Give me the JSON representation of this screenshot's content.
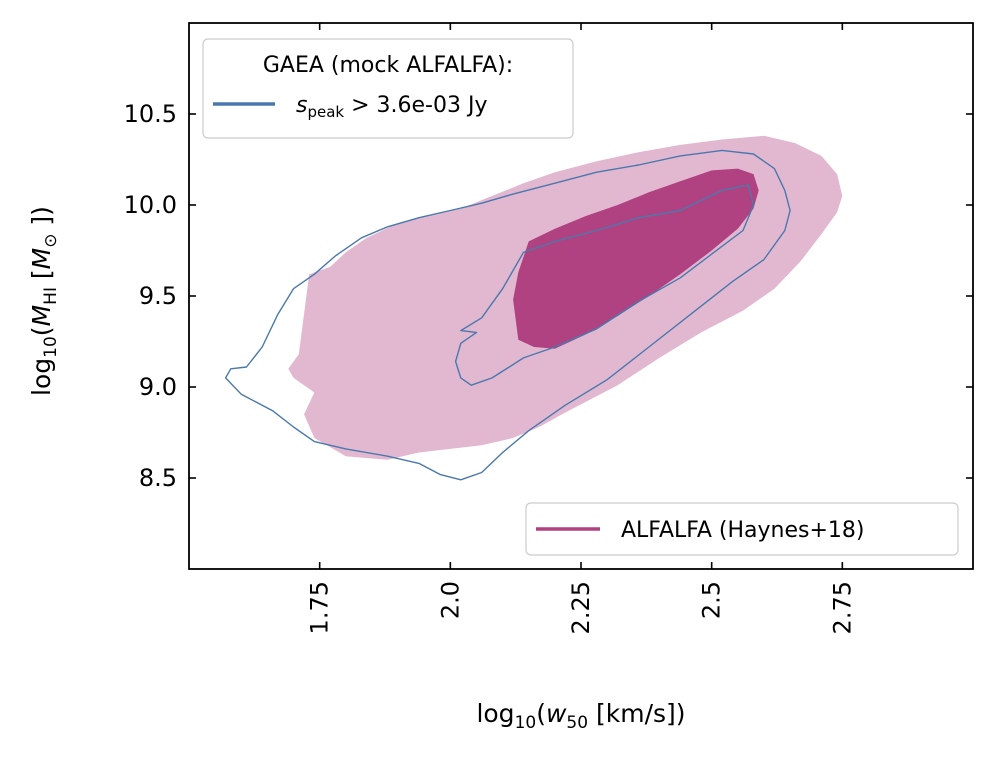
{
  "chart_data": {
    "type": "contour",
    "title": "",
    "xlabel": "log10(w50 [km/s])",
    "ylabel": "log10(MHI [M⊙])",
    "xlim": [
      1.5,
      3.0
    ],
    "ylim": [
      8.0,
      11.0
    ],
    "x_ticks": [
      1.75,
      2.0,
      2.25,
      2.5,
      2.75
    ],
    "x_tick_labels": [
      "1.75",
      "2.0",
      "2.25",
      "2.5",
      "2.75"
    ],
    "y_ticks": [
      8.5,
      9.0,
      9.5,
      10.0,
      10.5
    ],
    "y_tick_labels": [
      "8.5",
      "9.0",
      "9.5",
      "10.0",
      "10.5"
    ],
    "grid": false,
    "legends": [
      {
        "placement": "top-left",
        "title": "GAEA (mock ALFALFA):",
        "entries": [
          {
            "label_symbol": "s",
            "label_subscript": "peak",
            "label_rest": " >  3.6e-03 Jy",
            "color": "#4a78ad"
          }
        ]
      },
      {
        "placement": "bottom-right",
        "title": "",
        "entries": [
          {
            "label": "ALFALFA (Haynes+18)",
            "color": "#b04282"
          }
        ]
      }
    ],
    "series": [
      {
        "name": "ALFALFA (Haynes+18)",
        "kind": "filled-contour",
        "color_outer": "#e2b8d1",
        "color_inner": "#b04282",
        "levels": [
          {
            "level": "outer",
            "x": [
              1.73,
              1.77,
              1.8,
              1.84,
              1.9,
              1.96,
              2.02,
              2.08,
              2.14,
              2.2,
              2.28,
              2.36,
              2.44,
              2.52,
              2.6,
              2.66,
              2.71,
              2.74,
              2.75,
              2.74,
              2.71,
              2.67,
              2.62,
              2.56,
              2.48,
              2.4,
              2.32,
              2.26,
              2.22,
              2.17,
              2.12,
              2.06,
              2.0,
              1.94,
              1.88,
              1.8,
              1.74,
              1.72,
              1.74,
              1.7,
              1.69,
              1.71,
              1.73
            ],
            "y": [
              9.62,
              9.66,
              9.74,
              9.82,
              9.9,
              9.94,
              9.98,
              10.05,
              10.12,
              10.18,
              10.24,
              10.29,
              10.33,
              10.36,
              10.38,
              10.34,
              10.27,
              10.17,
              10.05,
              9.96,
              9.84,
              9.69,
              9.54,
              9.42,
              9.3,
              9.16,
              9.01,
              8.92,
              8.86,
              8.78,
              8.72,
              8.68,
              8.66,
              8.64,
              8.6,
              8.62,
              8.72,
              8.85,
              8.97,
              9.05,
              9.1,
              9.18,
              9.62
            ]
          },
          {
            "level": "inner",
            "x": [
              2.15,
              2.2,
              2.26,
              2.32,
              2.38,
              2.44,
              2.5,
              2.55,
              2.58,
              2.59,
              2.58,
              2.55,
              2.5,
              2.44,
              2.38,
              2.32,
              2.26,
              2.2,
              2.16,
              2.13,
              2.12,
              2.13,
              2.15
            ],
            "y": [
              9.8,
              9.87,
              9.94,
              10.0,
              10.07,
              10.13,
              10.19,
              10.2,
              10.17,
              10.08,
              9.98,
              9.87,
              9.75,
              9.62,
              9.5,
              9.39,
              9.29,
              9.21,
              9.22,
              9.26,
              9.48,
              9.63,
              9.8
            ]
          }
        ]
      },
      {
        "name": "GAEA (mock ALFALFA)",
        "kind": "line-contour",
        "color": "#4a78ad",
        "levels": [
          {
            "level": "outer",
            "x": [
              1.64,
              1.67,
              1.7,
              1.74,
              1.78,
              1.83,
              1.88,
              1.94,
              2.0,
              2.06,
              2.12,
              2.2,
              2.28,
              2.36,
              2.44,
              2.52,
              2.58,
              2.62,
              2.64,
              2.65,
              2.64,
              2.6,
              2.54,
              2.46,
              2.38,
              2.3,
              2.22,
              2.15,
              2.1,
              2.06,
              2.02,
              1.98,
              1.94,
              1.88,
              1.8,
              1.74,
              1.7,
              1.66,
              1.6,
              1.57,
              1.58,
              1.61,
              1.64
            ],
            "y": [
              9.22,
              9.4,
              9.54,
              9.62,
              9.72,
              9.82,
              9.88,
              9.93,
              9.97,
              10.01,
              10.06,
              10.12,
              10.18,
              10.22,
              10.27,
              10.3,
              10.28,
              10.2,
              10.08,
              9.97,
              9.86,
              9.7,
              9.58,
              9.4,
              9.22,
              9.04,
              8.9,
              8.76,
              8.64,
              8.53,
              8.49,
              8.52,
              8.58,
              8.62,
              8.66,
              8.7,
              8.78,
              8.87,
              8.96,
              9.05,
              9.1,
              9.11,
              9.22
            ]
          },
          {
            "level": "inner",
            "x": [
              2.02,
              2.06,
              2.1,
              2.14,
              2.2,
              2.28,
              2.36,
              2.44,
              2.52,
              2.57,
              2.58,
              2.56,
              2.5,
              2.44,
              2.36,
              2.28,
              2.2,
              2.14,
              2.08,
              2.04,
              2.02,
              2.01,
              2.02,
              2.05,
              2.02
            ],
            "y": [
              9.31,
              9.38,
              9.54,
              9.74,
              9.8,
              9.86,
              9.93,
              9.97,
              10.08,
              10.11,
              10.0,
              9.86,
              9.73,
              9.6,
              9.47,
              9.32,
              9.22,
              9.16,
              9.05,
              9.01,
              9.05,
              9.14,
              9.24,
              9.3,
              9.31
            ]
          }
        ]
      }
    ]
  }
}
